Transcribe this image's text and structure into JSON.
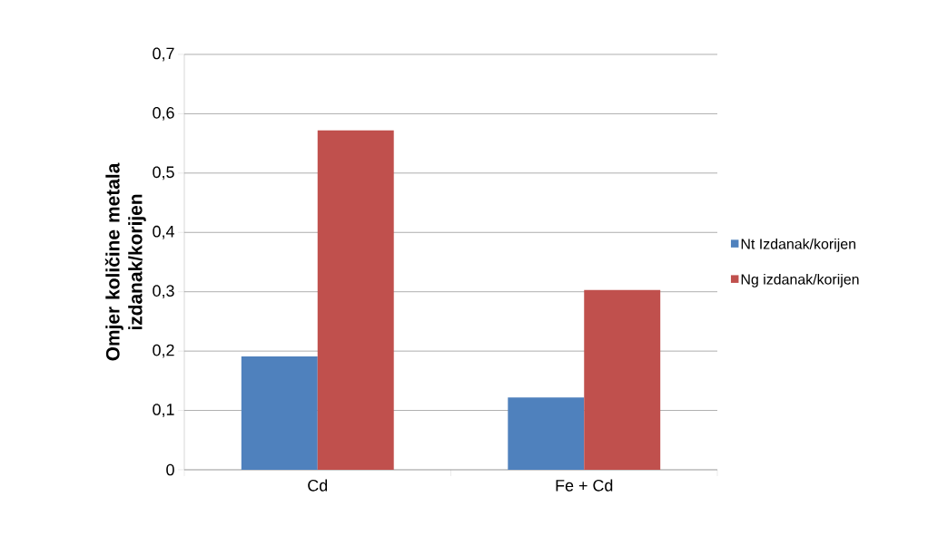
{
  "chart_data": {
    "type": "bar",
    "ylabel": "Omjer količine metala izdanak/korijen",
    "categories": [
      "Cd",
      "Fe + Cd"
    ],
    "series": [
      {
        "name": "Nt Izdanak/korijen",
        "color": "#4f81bd",
        "values": [
          0.191,
          0.122
        ]
      },
      {
        "name": "Ng izdanak/korijen",
        "color": "#c0504d",
        "values": [
          0.572,
          0.303
        ]
      }
    ],
    "ylim": [
      0,
      0.7
    ],
    "yticks": [
      0,
      {
        "value": 0.1,
        "label": "0,1"
      },
      {
        "value": 0.2,
        "label": "0,2"
      },
      {
        "value": 0.3,
        "label": "0,3"
      },
      {
        "value": 0.4,
        "label": "0,4"
      },
      {
        "value": 0.5,
        "label": "0,5"
      },
      {
        "value": 0.6,
        "label": "0,6"
      },
      {
        "value": 0.7,
        "label": "0,7"
      }
    ],
    "grid": "y",
    "legend": "right"
  }
}
